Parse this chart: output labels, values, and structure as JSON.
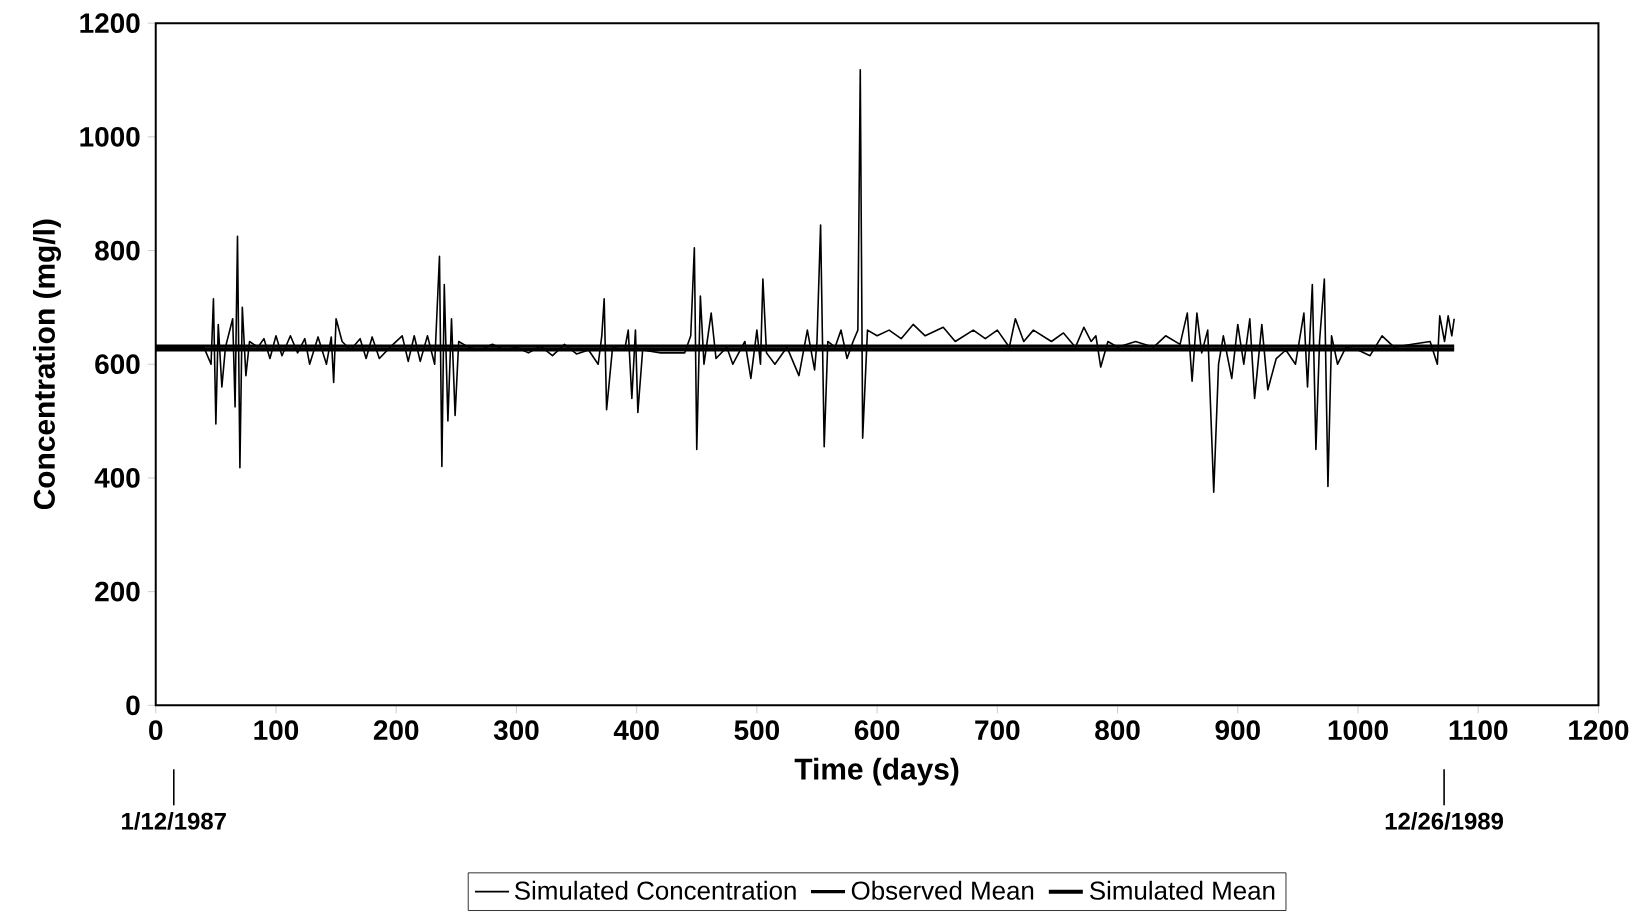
{
  "chart_data": {
    "type": "line",
    "xlabel": "Time (days)",
    "ylabel": "Concentration (mg/l)",
    "xlim": [
      0,
      1200
    ],
    "xticks": [
      0,
      100,
      200,
      300,
      400,
      500,
      600,
      700,
      800,
      900,
      1000,
      1100,
      1200
    ],
    "ylim": [
      0,
      1200
    ],
    "yticks": [
      0,
      200,
      400,
      600,
      800,
      1000,
      1200
    ],
    "legend": "bottom",
    "grid": false,
    "line_style": "solid",
    "marker": "none",
    "annotations": [
      "1/12/1987",
      "12/26/1989"
    ],
    "series": [
      {
        "name": "Simulated Concentration",
        "color": "#000000",
        "x": [
          0,
          40,
          46,
          48,
          50,
          52,
          55,
          58,
          64,
          66,
          68,
          70,
          72,
          75,
          78,
          85,
          90,
          95,
          100,
          105,
          112,
          118,
          124,
          128,
          135,
          142,
          146,
          148,
          150,
          155,
          162,
          170,
          175,
          180,
          186,
          195,
          205,
          210,
          215,
          220,
          226,
          232,
          236,
          238,
          240,
          243,
          246,
          249,
          252,
          260,
          270,
          280,
          290,
          300,
          310,
          320,
          330,
          340,
          350,
          360,
          368,
          371,
          373,
          375,
          380,
          390,
          393,
          396,
          399,
          401,
          405,
          420,
          440,
          445,
          448,
          450,
          453,
          456,
          462,
          466,
          475,
          480,
          490,
          495,
          500,
          503,
          505,
          508,
          515,
          525,
          535,
          542,
          548,
          550,
          553,
          556,
          559,
          565,
          570,
          575,
          580,
          584,
          586,
          588,
          592,
          600,
          610,
          620,
          630,
          640,
          655,
          665,
          680,
          690,
          700,
          710,
          715,
          722,
          730,
          745,
          755,
          765,
          772,
          778,
          782,
          786,
          792,
          800,
          815,
          830,
          840,
          852,
          858,
          862,
          866,
          870,
          875,
          880,
          884,
          888,
          895,
          900,
          905,
          910,
          914,
          920,
          925,
          932,
          940,
          948,
          955,
          958,
          962,
          965,
          968,
          972,
          975,
          978,
          983,
          990,
          1000,
          1010,
          1020,
          1030,
          1045,
          1060,
          1066,
          1068,
          1072,
          1075,
          1078,
          1080
        ],
        "values": [
          630,
          630,
          600,
          715,
          495,
          670,
          560,
          630,
          680,
          525,
          825,
          418,
          700,
          580,
          640,
          630,
          645,
          610,
          650,
          615,
          650,
          620,
          645,
          600,
          648,
          600,
          648,
          568,
          680,
          640,
          625,
          645,
          610,
          648,
          610,
          630,
          650,
          605,
          650,
          605,
          650,
          600,
          790,
          420,
          740,
          500,
          680,
          510,
          640,
          630,
          625,
          635,
          625,
          630,
          620,
          632,
          615,
          635,
          618,
          625,
          600,
          650,
          715,
          520,
          630,
          625,
          660,
          540,
          660,
          515,
          625,
          620,
          620,
          650,
          805,
          450,
          720,
          600,
          690,
          610,
          630,
          600,
          640,
          575,
          660,
          600,
          750,
          620,
          600,
          630,
          580,
          660,
          590,
          640,
          845,
          455,
          640,
          630,
          660,
          610,
          640,
          660,
          1118,
          470,
          660,
          650,
          660,
          645,
          670,
          650,
          665,
          640,
          660,
          645,
          660,
          630,
          680,
          640,
          660,
          640,
          655,
          630,
          665,
          640,
          650,
          595,
          640,
          630,
          640,
          630,
          650,
          635,
          690,
          570,
          690,
          620,
          660,
          375,
          600,
          650,
          575,
          670,
          600,
          680,
          540,
          670,
          555,
          610,
          625,
          600,
          690,
          560,
          740,
          450,
          640,
          750,
          385,
          650,
          600,
          630,
          625,
          615,
          650,
          630,
          635,
          640,
          600,
          685,
          640,
          685,
          650,
          680
        ]
      },
      {
        "name": "Observed Mean",
        "color": "#000000",
        "x": [
          0,
          1080
        ],
        "values": [
          632,
          632
        ]
      },
      {
        "name": "Simulated Mean",
        "color": "#000000",
        "x": [
          0,
          1080
        ],
        "values": [
          626,
          626
        ]
      }
    ]
  }
}
